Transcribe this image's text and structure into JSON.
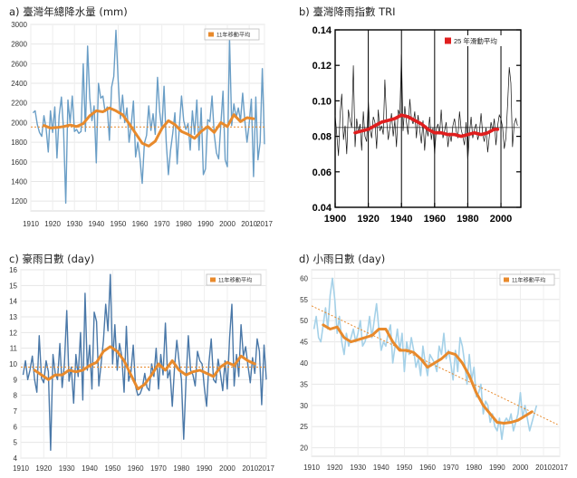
{
  "chart_data": [
    {
      "id": "a",
      "type": "line",
      "title": "a) 臺灣年總降水量 (mm)",
      "xlim": [
        1910,
        2017
      ],
      "ylim": [
        1100,
        3000
      ],
      "x_ticks": [
        1910,
        1920,
        1930,
        1940,
        1950,
        1960,
        1970,
        1980,
        1990,
        2000,
        2010,
        2017
      ],
      "y_ticks": [
        1200,
        1400,
        1600,
        1800,
        2000,
        2200,
        2400,
        2600,
        2800,
        3000
      ],
      "legend": {
        "position": "top-right",
        "labels": [
          "11年移動平均"
        ]
      },
      "grid": true,
      "series": [
        {
          "role": "annual",
          "color": "#6a9ec6",
          "x_start": 1911,
          "values": [
            2100,
            2120,
            1980,
            1900,
            1860,
            2070,
            1940,
            1700,
            2120,
            1900,
            2160,
            1640,
            2070,
            2260,
            1920,
            1180,
            2230,
            2000,
            2270,
            1910,
            1930,
            1890,
            1910,
            2600,
            1910,
            2780,
            2250,
            2020,
            2170,
            1590,
            2400,
            2250,
            2270,
            2110,
            2160,
            1820,
            2360,
            2470,
            2940,
            2440,
            2040,
            2280,
            2000,
            2150,
            1800,
            1980,
            2220,
            1650,
            1800,
            1630,
            1380,
            1790,
            1870,
            2170,
            1920,
            2090,
            1880,
            2460,
            2110,
            1920,
            2370,
            1800,
            1470,
            1720,
            1890,
            2100,
            1580,
            1960,
            2270,
            2020,
            1930,
            1990,
            1720,
            2120,
            1880,
            2230,
            1720,
            2150,
            1470,
            1530,
            2030,
            2010,
            2270,
            1880,
            1690,
            1630,
            1980,
            2320,
            1620,
            1550,
            2860,
            1970,
            2190,
            2050,
            2150,
            2020,
            2300,
            2020,
            1800,
            1990,
            2240,
            1450,
            2260,
            1620,
            1800,
            2550,
            1780
          ]
        },
        {
          "role": "moving-average",
          "color": "#e88a2c",
          "points": [
            [
              1916,
              1970
            ],
            [
              1919,
              1945
            ],
            [
              1922,
              1950
            ],
            [
              1925,
              1960
            ],
            [
              1928,
              1975
            ],
            [
              1931,
              1960
            ],
            [
              1934,
              1990
            ],
            [
              1937,
              2070
            ],
            [
              1940,
              2120
            ],
            [
              1943,
              2110
            ],
            [
              1946,
              2150
            ],
            [
              1949,
              2120
            ],
            [
              1952,
              2080
            ],
            [
              1955,
              1990
            ],
            [
              1958,
              1890
            ],
            [
              1961,
              1790
            ],
            [
              1964,
              1760
            ],
            [
              1967,
              1810
            ],
            [
              1970,
              1940
            ],
            [
              1973,
              2020
            ],
            [
              1976,
              1980
            ],
            [
              1979,
              1910
            ],
            [
              1982,
              1880
            ],
            [
              1985,
              1840
            ],
            [
              1988,
              1910
            ],
            [
              1991,
              1960
            ],
            [
              1994,
              1900
            ],
            [
              1997,
              2000
            ],
            [
              2000,
              1960
            ],
            [
              2003,
              2080
            ],
            [
              2006,
              2010
            ],
            [
              2009,
              2050
            ],
            [
              2012,
              2040
            ]
          ]
        },
        {
          "role": "mean",
          "color": "#e88a2c",
          "style": "dotted",
          "value": 1955
        }
      ]
    },
    {
      "id": "b",
      "type": "line",
      "title": "b) 臺灣降雨指數 TRI",
      "xlim": [
        1900,
        2012
      ],
      "ylim": [
        0.04,
        0.14
      ],
      "x_ticks": [
        1900,
        1920,
        1940,
        1960,
        1980,
        2000
      ],
      "y_ticks": [
        0.04,
        0.06,
        0.08,
        0.1,
        0.12,
        0.14
      ],
      "legend": {
        "position": "top-right",
        "labels": [
          "25 年滑動平均"
        ]
      },
      "mean": 0.085,
      "series": [
        {
          "role": "index",
          "color": "#111111",
          "x_start": 1900,
          "values": [
            0.092,
            0.081,
            0.069,
            0.093,
            0.104,
            0.078,
            0.086,
            0.07,
            0.095,
            0.089,
            0.085,
            0.12,
            0.074,
            0.09,
            0.082,
            0.087,
            0.072,
            0.094,
            0.08,
            0.077,
            0.1,
            0.084,
            0.079,
            0.091,
            0.088,
            0.073,
            0.095,
            0.083,
            0.086,
            0.081,
            0.112,
            0.09,
            0.078,
            0.085,
            0.093,
            0.08,
            0.089,
            0.074,
            0.095,
            0.092,
            0.126,
            0.083,
            0.097,
            0.088,
            0.081,
            0.101,
            0.09,
            0.087,
            0.094,
            0.079,
            0.092,
            0.084,
            0.076,
            0.089,
            0.072,
            0.086,
            0.08,
            0.091,
            0.078,
            0.085,
            0.07,
            0.084,
            0.087,
            0.081,
            0.095,
            0.079,
            0.083,
            0.088,
            0.074,
            0.082,
            0.077,
            0.086,
            0.09,
            0.083,
            0.079,
            0.094,
            0.084,
            0.08,
            0.075,
            0.088,
            0.066,
            0.082,
            0.091,
            0.079,
            0.084,
            0.087,
            0.078,
            0.082,
            0.093,
            0.081,
            0.077,
            0.085,
            0.071,
            0.08,
            0.088,
            0.083,
            0.09,
            0.075,
            0.086,
            0.092,
            0.09,
            0.085,
            0.073,
            0.079,
            0.098,
            0.119,
            0.11,
            0.074,
            0.087,
            0.09,
            0.086
          ]
        },
        {
          "role": "moving-average",
          "name": "25 年滑動平均",
          "color": "#e01e1e",
          "points": [
            [
              1912,
              0.082
            ],
            [
              1916,
              0.083
            ],
            [
              1920,
              0.084
            ],
            [
              1924,
              0.086
            ],
            [
              1928,
              0.088
            ],
            [
              1932,
              0.089
            ],
            [
              1936,
              0.09
            ],
            [
              1940,
              0.092
            ],
            [
              1944,
              0.091
            ],
            [
              1948,
              0.089
            ],
            [
              1952,
              0.087
            ],
            [
              1956,
              0.084
            ],
            [
              1960,
              0.082
            ],
            [
              1964,
              0.082
            ],
            [
              1968,
              0.081
            ],
            [
              1972,
              0.081
            ],
            [
              1976,
              0.08
            ],
            [
              1980,
              0.081
            ],
            [
              1984,
              0.082
            ],
            [
              1988,
              0.081
            ],
            [
              1992,
              0.082
            ],
            [
              1996,
              0.084
            ],
            [
              1998,
              0.084
            ]
          ]
        }
      ],
      "extreme_years": [
        1920,
        1940,
        1960,
        1980,
        2000
      ]
    },
    {
      "id": "c",
      "type": "line",
      "title": "c) 豪雨日數 (day)",
      "xlim": [
        1910,
        2017
      ],
      "ylim": [
        4,
        16
      ],
      "x_ticks": [
        1910,
        1920,
        1930,
        1940,
        1950,
        1960,
        1970,
        1980,
        1990,
        2000,
        2010,
        2017
      ],
      "y_ticks": [
        4,
        5,
        6,
        7,
        8,
        9,
        10,
        11,
        12,
        13,
        14,
        15,
        16
      ],
      "legend": {
        "position": "top-right",
        "labels": [
          "11年移動平均"
        ]
      },
      "grid": true,
      "series": [
        {
          "role": "annual",
          "color": "#4a78a8",
          "x_start": 1911,
          "values": [
            9.3,
            10.2,
            9.0,
            9.6,
            10.5,
            9.0,
            8.2,
            11.8,
            9.1,
            8.8,
            10.2,
            9.5,
            4.5,
            10.6,
            9.4,
            9.0,
            11.3,
            8.5,
            10.0,
            13.4,
            8.9,
            9.8,
            7.5,
            10.6,
            9.2,
            12.0,
            7.7,
            14.5,
            9.6,
            11.2,
            8.4,
            13.3,
            12.7,
            8.6,
            10.0,
            11.5,
            13.8,
            12.1,
            15.7,
            10.0,
            12.5,
            9.6,
            11.3,
            10.5,
            8.2,
            12.4,
            8.9,
            9.5,
            11.2,
            8.6,
            8.0,
            8.1,
            8.5,
            9.4,
            8.5,
            8.3,
            10.0,
            9.2,
            11.0,
            8.4,
            10.6,
            9.3,
            12.6,
            9.1,
            9.6,
            7.3,
            9.8,
            11.5,
            10.1,
            9.0,
            5.2,
            9.0,
            11.8,
            9.6,
            9.3,
            8.6,
            10.8,
            10.2,
            10.0,
            8.5,
            7.3,
            10.1,
            11.6,
            9.0,
            8.8,
            10.3,
            9.4,
            8.3,
            10.2,
            8.4,
            11.7,
            13.8,
            8.6,
            10.6,
            9.2,
            12.5,
            10.5,
            11.1,
            9.9,
            8.8,
            10.4,
            9.4,
            11.6,
            10.8,
            7.4,
            11.2,
            9.0
          ]
        },
        {
          "role": "moving-average",
          "color": "#e88a2c",
          "points": [
            [
              1916,
              9.6
            ],
            [
              1919,
              9.3
            ],
            [
              1922,
              9.0
            ],
            [
              1925,
              9.3
            ],
            [
              1928,
              9.3
            ],
            [
              1931,
              9.6
            ],
            [
              1934,
              9.5
            ],
            [
              1937,
              9.6
            ],
            [
              1940,
              9.9
            ],
            [
              1943,
              10.1
            ],
            [
              1946,
              10.8
            ],
            [
              1949,
              11.1
            ],
            [
              1952,
              10.8
            ],
            [
              1955,
              10.2
            ],
            [
              1958,
              9.3
            ],
            [
              1961,
              8.4
            ],
            [
              1964,
              8.7
            ],
            [
              1967,
              9.3
            ],
            [
              1970,
              10.0
            ],
            [
              1973,
              9.6
            ],
            [
              1976,
              10.2
            ],
            [
              1979,
              9.6
            ],
            [
              1982,
              9.3
            ],
            [
              1985,
              9.5
            ],
            [
              1988,
              9.6
            ],
            [
              1991,
              9.4
            ],
            [
              1994,
              9.2
            ],
            [
              1997,
              9.8
            ],
            [
              2000,
              10.1
            ],
            [
              2003,
              9.9
            ],
            [
              2006,
              10.5
            ],
            [
              2009,
              10.2
            ],
            [
              2012,
              10.0
            ]
          ]
        },
        {
          "role": "mean",
          "color": "#e88a2c",
          "style": "dotted",
          "value": 9.8
        }
      ]
    },
    {
      "id": "d",
      "type": "line",
      "title": "d) 小雨日數 (day)",
      "xlim": [
        1910,
        2017
      ],
      "ylim": [
        18,
        62
      ],
      "x_ticks": [
        1910,
        1920,
        1930,
        1940,
        1950,
        1960,
        1970,
        1980,
        1990,
        2000,
        2010,
        2017
      ],
      "y_ticks": [
        20,
        25,
        30,
        35,
        40,
        45,
        50,
        55,
        60
      ],
      "legend": {
        "position": "top-right",
        "labels": [
          "11年移動平均"
        ]
      },
      "grid": true,
      "series": [
        {
          "role": "annual",
          "color": "#a5d1e8",
          "x_start": 1911,
          "values": [
            48,
            51,
            46,
            45,
            49,
            53,
            48,
            56,
            60,
            55,
            47,
            51,
            45,
            42,
            47,
            44,
            46,
            48,
            45,
            47,
            50,
            44,
            45,
            47,
            51,
            46,
            50,
            54,
            48,
            43,
            45,
            44,
            47,
            49,
            40,
            44,
            48,
            43,
            47,
            38,
            45,
            42,
            46,
            43,
            39,
            41,
            37,
            44,
            40,
            37,
            42,
            41,
            40,
            38,
            44,
            42,
            47,
            41,
            43,
            40,
            36,
            43,
            38,
            46,
            44,
            40,
            35,
            42,
            36,
            39,
            32,
            33,
            35,
            28,
            31,
            30,
            26,
            28,
            25,
            24,
            27,
            22,
            26,
            27,
            26,
            28,
            24,
            26,
            28,
            33,
            27,
            30,
            27,
            24,
            26,
            28,
            30
          ]
        },
        {
          "role": "moving-average",
          "color": "#e88a2c",
          "points": [
            [
              1915,
              49
            ],
            [
              1918,
              48
            ],
            [
              1921,
              48.5
            ],
            [
              1924,
              46
            ],
            [
              1927,
              45
            ],
            [
              1930,
              45.5
            ],
            [
              1933,
              46
            ],
            [
              1936,
              46.5
            ],
            [
              1939,
              48
            ],
            [
              1942,
              48
            ],
            [
              1945,
              45
            ],
            [
              1948,
              43
            ],
            [
              1951,
              43
            ],
            [
              1954,
              42.5
            ],
            [
              1957,
              41
            ],
            [
              1960,
              39
            ],
            [
              1963,
              40
            ],
            [
              1966,
              41
            ],
            [
              1969,
              42.5
            ],
            [
              1972,
              42
            ],
            [
              1975,
              40
            ],
            [
              1978,
              37
            ],
            [
              1981,
              33
            ],
            [
              1984,
              30
            ],
            [
              1987,
              28
            ],
            [
              1990,
              26
            ],
            [
              1993,
              25.8
            ],
            [
              1996,
              26
            ],
            [
              1999,
              26.5
            ],
            [
              2002,
              27.5
            ],
            [
              2005,
              28.5
            ]
          ]
        },
        {
          "role": "trend",
          "color": "#e88a2c",
          "style": "dotted",
          "points": [
            [
              1910,
              53.5
            ],
            [
              2016,
              25.5
            ]
          ]
        }
      ]
    }
  ]
}
